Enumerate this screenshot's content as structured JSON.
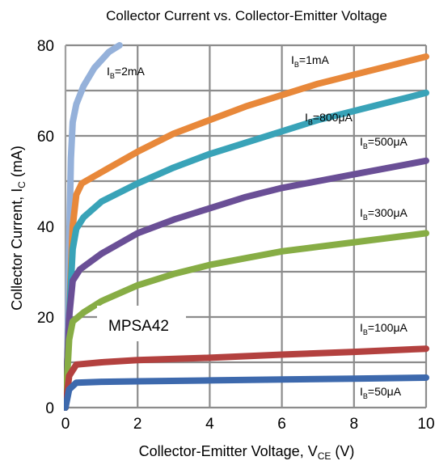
{
  "chart_data": {
    "type": "line",
    "title": "Collector Current vs. Collector-Emitter Voltage",
    "xlabel": {
      "main": "Collector-Emitter Voltage, V",
      "sub": "CE",
      "tail": " (V)"
    },
    "ylabel": {
      "main": "Collector Current, I",
      "sub": "C",
      "tail": " (mA)"
    },
    "xlim": [
      0,
      10
    ],
    "ylim": [
      0,
      80
    ],
    "xticks": [
      "0",
      "2",
      "4",
      "6",
      "8",
      "10"
    ],
    "yticks": [
      "0",
      "20",
      "40",
      "60",
      "80"
    ],
    "grid": true,
    "annotation": "MPSA42",
    "series": [
      {
        "name": {
          "pre": "I",
          "sub": "B",
          "post": "=2mA"
        },
        "color": "#95b1da",
        "points": [
          [
            0,
            0
          ],
          [
            0.05,
            10
          ],
          [
            0.1,
            35
          ],
          [
            0.15,
            55
          ],
          [
            0.2,
            63
          ],
          [
            0.3,
            67
          ],
          [
            0.5,
            71
          ],
          [
            0.8,
            75
          ],
          [
            1.2,
            78.5
          ],
          [
            1.5,
            80
          ]
        ]
      },
      {
        "name": {
          "pre": "I",
          "sub": "B",
          "post": "=1mA"
        },
        "color": "#e8883a",
        "points": [
          [
            0,
            0
          ],
          [
            0.1,
            20
          ],
          [
            0.2,
            40
          ],
          [
            0.3,
            47
          ],
          [
            0.45,
            49.5
          ],
          [
            1,
            52
          ],
          [
            2,
            56.5
          ],
          [
            3,
            60.5
          ],
          [
            4,
            63.5
          ],
          [
            5,
            66.5
          ],
          [
            6,
            69
          ],
          [
            7,
            71.5
          ],
          [
            8,
            73.5
          ],
          [
            9,
            75.5
          ],
          [
            10,
            77.5
          ]
        ]
      },
      {
        "name": {
          "pre": "I",
          "sub": "B",
          "post": "=800μA"
        },
        "color": "#39a3b8",
        "points": [
          [
            0,
            0
          ],
          [
            0.1,
            20
          ],
          [
            0.2,
            35
          ],
          [
            0.3,
            39.5
          ],
          [
            0.5,
            42
          ],
          [
            1,
            45.5
          ],
          [
            2,
            49.5
          ],
          [
            3,
            53
          ],
          [
            4,
            56
          ],
          [
            5,
            58.5
          ],
          [
            6,
            61
          ],
          [
            7,
            63.5
          ],
          [
            8,
            65.5
          ],
          [
            9,
            67.5
          ],
          [
            10,
            69.5
          ]
        ]
      },
      {
        "name": {
          "pre": "I",
          "sub": "B",
          "post": "=500μA"
        },
        "color": "#6a4f96",
        "points": [
          [
            0,
            0
          ],
          [
            0.1,
            20
          ],
          [
            0.2,
            28
          ],
          [
            0.4,
            30.5
          ],
          [
            1,
            34
          ],
          [
            2,
            38.5
          ],
          [
            3,
            41.5
          ],
          [
            4,
            44
          ],
          [
            5,
            46.5
          ],
          [
            6,
            48.5
          ],
          [
            7,
            50
          ],
          [
            8,
            51.5
          ],
          [
            9,
            53
          ],
          [
            10,
            54.5
          ]
        ]
      },
      {
        "name": {
          "pre": "I",
          "sub": "B",
          "post": "=300μA"
        },
        "color": "#87ad45",
        "points": [
          [
            0,
            0
          ],
          [
            0.1,
            15
          ],
          [
            0.2,
            19
          ],
          [
            0.5,
            21
          ],
          [
            1,
            23.5
          ],
          [
            2,
            27
          ],
          [
            3,
            29.5
          ],
          [
            4,
            31.5
          ],
          [
            5,
            33
          ],
          [
            6,
            34.5
          ],
          [
            7,
            35.5
          ],
          [
            8,
            36.5
          ],
          [
            9,
            37.5
          ],
          [
            10,
            38.5
          ]
        ]
      },
      {
        "name": {
          "pre": "I",
          "sub": "B",
          "post": "=100μA"
        },
        "color": "#b3413f",
        "points": [
          [
            0,
            0
          ],
          [
            0.1,
            7
          ],
          [
            0.3,
            9.5
          ],
          [
            1,
            10
          ],
          [
            2,
            10.5
          ],
          [
            4,
            11
          ],
          [
            6,
            11.7
          ],
          [
            8,
            12.3
          ],
          [
            10,
            13
          ]
        ]
      },
      {
        "name": {
          "pre": "I",
          "sub": "B",
          "post": "=50μA"
        },
        "color": "#3d69ad",
        "points": [
          [
            0,
            0
          ],
          [
            0.1,
            4
          ],
          [
            0.3,
            5.5
          ],
          [
            1,
            5.7
          ],
          [
            2,
            5.8
          ],
          [
            4,
            6
          ],
          [
            6,
            6.2
          ],
          [
            8,
            6.4
          ],
          [
            10,
            6.6
          ]
        ]
      }
    ]
  }
}
